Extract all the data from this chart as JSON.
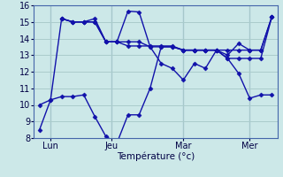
{
  "background_color": "#cce8e8",
  "grid_color": "#aacccc",
  "line_color": "#1111aa",
  "line_width": 1.0,
  "marker": "D",
  "marker_size": 2.5,
  "xlabel": "Température (°c)",
  "ylim": [
    8,
    16
  ],
  "yticks": [
    8,
    9,
    10,
    11,
    12,
    13,
    14,
    15,
    16
  ],
  "day_labels": [
    "Lun",
    "Jeu",
    "Mar",
    "Mer"
  ],
  "lines": [
    {
      "x": [
        0,
        1,
        2,
        3,
        4,
        5,
        6,
        7,
        8,
        9,
        10,
        11,
        12,
        13,
        14,
        15,
        16,
        17,
        18,
        19,
        20,
        21
      ],
      "y": [
        8.5,
        10.3,
        15.2,
        15.0,
        15.0,
        15.2,
        13.8,
        13.8,
        15.65,
        15.6,
        13.5,
        12.5,
        12.2,
        11.5,
        12.5,
        12.2,
        13.3,
        13.0,
        13.7,
        13.3,
        13.3,
        15.3
      ]
    },
    {
      "x": [
        0,
        1,
        2,
        3,
        4,
        5,
        6,
        7,
        8,
        9,
        10,
        11,
        12,
        13,
        14,
        15,
        16,
        17,
        18,
        19,
        20,
        21
      ],
      "y": [
        10.0,
        10.3,
        10.5,
        10.5,
        10.6,
        9.3,
        8.1,
        7.7,
        9.4,
        9.4,
        11.0,
        13.5,
        13.5,
        13.3,
        13.3,
        13.3,
        13.3,
        12.8,
        11.9,
        10.4,
        10.6,
        10.6
      ]
    },
    {
      "x": [
        2,
        3,
        4,
        5,
        6,
        7,
        8,
        9,
        10,
        11,
        12,
        13,
        14,
        15,
        16,
        17,
        18,
        19,
        20,
        21
      ],
      "y": [
        15.2,
        15.0,
        15.0,
        15.0,
        13.8,
        13.8,
        13.8,
        13.8,
        13.5,
        13.5,
        13.5,
        13.3,
        13.3,
        13.3,
        13.3,
        13.3,
        13.3,
        13.3,
        13.3,
        15.3
      ]
    },
    {
      "x": [
        2,
        3,
        4,
        5,
        6,
        7,
        8,
        9,
        10,
        11,
        12,
        13,
        14,
        15,
        16,
        17,
        18,
        19,
        20,
        21
      ],
      "y": [
        15.2,
        15.0,
        15.0,
        15.0,
        13.8,
        13.8,
        13.55,
        13.55,
        13.55,
        13.55,
        13.55,
        13.3,
        13.3,
        13.3,
        13.3,
        12.8,
        12.8,
        12.8,
        12.8,
        15.3
      ]
    }
  ],
  "n_points": 22,
  "xlim": [
    -0.5,
    21.5
  ]
}
